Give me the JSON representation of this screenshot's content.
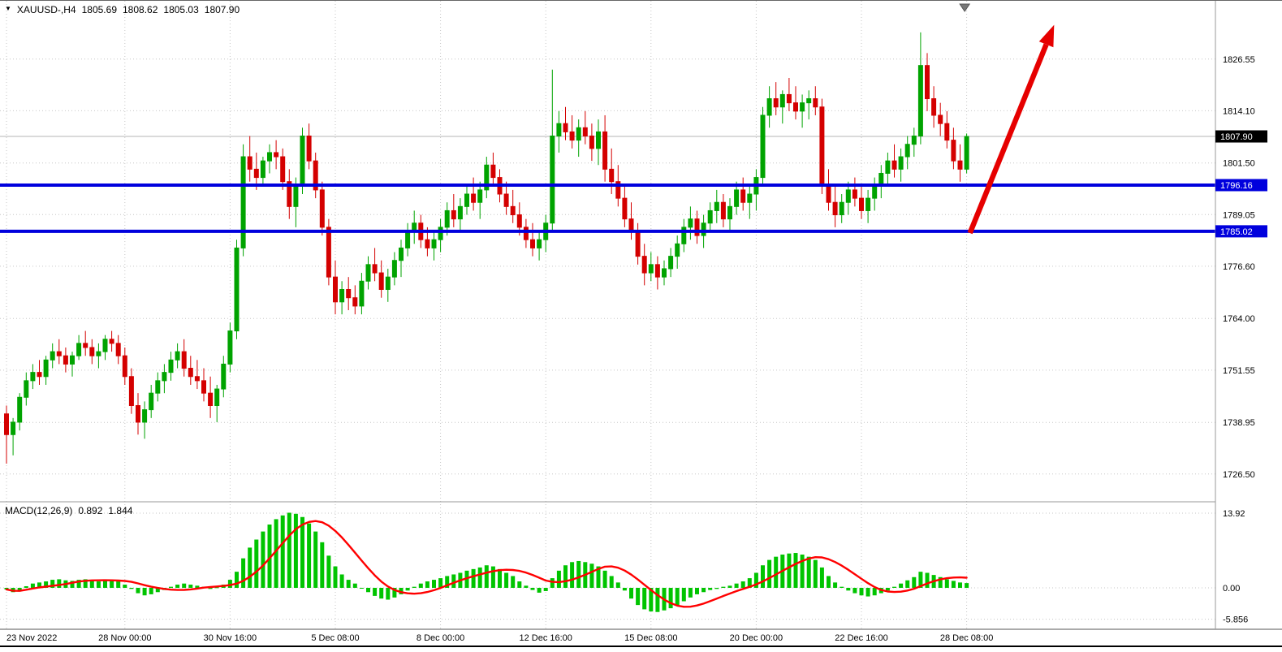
{
  "header": {
    "symbol": "XAUUSD-,H4",
    "open": "1805.69",
    "high": "1808.62",
    "low": "1805.03",
    "close": "1807.90"
  },
  "colors": {
    "up": "#00a300",
    "down": "#d40000",
    "hline": "#0000dd",
    "macd_bar": "#00c400",
    "signal": "#ff0000",
    "arrow": "#e60000",
    "grid": "#c6c6c6",
    "price_line": "#b4b4b4",
    "axis_text": "#000000",
    "badge_current_bg": "#000000",
    "badge_text": "#ffffff"
  },
  "chart_data": {
    "type": "candlestick",
    "symbol": "XAUUSD-",
    "timeframe": "H4",
    "price_range": [
      1719.8,
      1840.6
    ],
    "macd_range": [
      -7.72,
      16.04
    ],
    "grid": true,
    "price_tick_labels": [
      "1826.55",
      "1814.10",
      "1801.50",
      "1789.05",
      "1776.60",
      "1764.00",
      "1751.55",
      "1738.95",
      "1726.50"
    ],
    "current_price_label": "1807.90",
    "current_price": 1807.9,
    "hlines": [
      {
        "label": "1796.16",
        "price": 1796.16
      },
      {
        "label": "1785.02",
        "price": 1785.02
      }
    ],
    "time_labels": [
      {
        "text": "23 Nov 2022",
        "i": 0
      },
      {
        "text": "28 Nov 00:00",
        "i": 18
      },
      {
        "text": "30 Nov 16:00",
        "i": 34
      },
      {
        "text": "5 Dec 08:00",
        "i": 50
      },
      {
        "text": "8 Dec 00:00",
        "i": 66
      },
      {
        "text": "12 Dec 16:00",
        "i": 82
      },
      {
        "text": "15 Dec 08:00",
        "i": 98
      },
      {
        "text": "20 Dec 00:00",
        "i": 114
      },
      {
        "text": "22 Dec 16:00",
        "i": 130
      },
      {
        "text": "28 Dec 08:00",
        "i": 146
      }
    ],
    "candles": [
      [
        1741,
        1743,
        1729,
        1736
      ],
      [
        1736,
        1740,
        1731,
        1739
      ],
      [
        1739,
        1746,
        1737,
        1745
      ],
      [
        1745,
        1751,
        1743,
        1749
      ],
      [
        1749,
        1753,
        1747,
        1751
      ],
      [
        1751,
        1754,
        1748,
        1750
      ],
      [
        1750,
        1755,
        1748,
        1754
      ],
      [
        1754,
        1758,
        1752,
        1756
      ],
      [
        1756,
        1759,
        1753,
        1755
      ],
      [
        1755,
        1757,
        1751,
        1753
      ],
      [
        1753,
        1756,
        1750,
        1755
      ],
      [
        1755,
        1760,
        1754,
        1758
      ],
      [
        1758,
        1761,
        1755,
        1757
      ],
      [
        1757,
        1759,
        1753,
        1755
      ],
      [
        1755,
        1758,
        1752,
        1756
      ],
      [
        1756,
        1760,
        1754,
        1759
      ],
      [
        1759,
        1761,
        1756,
        1758
      ],
      [
        1758,
        1760,
        1753,
        1755
      ],
      [
        1755,
        1757,
        1748,
        1750
      ],
      [
        1750,
        1752,
        1741,
        1743
      ],
      [
        1743,
        1746,
        1736,
        1739
      ],
      [
        1739,
        1744,
        1735,
        1742
      ],
      [
        1742,
        1748,
        1740,
        1746
      ],
      [
        1746,
        1751,
        1744,
        1749
      ],
      [
        1749,
        1753,
        1746,
        1751
      ],
      [
        1751,
        1756,
        1749,
        1754
      ],
      [
        1754,
        1758,
        1752,
        1756
      ],
      [
        1756,
        1759,
        1750,
        1752
      ],
      [
        1752,
        1755,
        1748,
        1750
      ],
      [
        1750,
        1754,
        1747,
        1749
      ],
      [
        1749,
        1752,
        1744,
        1746
      ],
      [
        1746,
        1750,
        1740,
        1743
      ],
      [
        1743,
        1748,
        1739,
        1747
      ],
      [
        1747,
        1755,
        1745,
        1753
      ],
      [
        1753,
        1763,
        1751,
        1761
      ],
      [
        1761,
        1783,
        1759,
        1781
      ],
      [
        1781,
        1806,
        1779,
        1803
      ],
      [
        1803,
        1808,
        1797,
        1800
      ],
      [
        1800,
        1804,
        1795,
        1798
      ],
      [
        1798,
        1803,
        1796,
        1802
      ],
      [
        1802,
        1806,
        1799,
        1804
      ],
      [
        1804,
        1807,
        1800,
        1803
      ],
      [
        1803,
        1805,
        1795,
        1797
      ],
      [
        1797,
        1800,
        1788,
        1791
      ],
      [
        1791,
        1798,
        1786,
        1796
      ],
      [
        1796,
        1810,
        1794,
        1808
      ],
      [
        1808,
        1811,
        1800,
        1802
      ],
      [
        1802,
        1804,
        1793,
        1795
      ],
      [
        1795,
        1797,
        1784,
        1786
      ],
      [
        1786,
        1788,
        1772,
        1774
      ],
      [
        1774,
        1778,
        1765,
        1768
      ],
      [
        1768,
        1773,
        1765,
        1771
      ],
      [
        1771,
        1774,
        1766,
        1769
      ],
      [
        1769,
        1772,
        1765,
        1767
      ],
      [
        1767,
        1775,
        1765,
        1773
      ],
      [
        1773,
        1779,
        1771,
        1777
      ],
      [
        1777,
        1781,
        1773,
        1775
      ],
      [
        1775,
        1778,
        1769,
        1771
      ],
      [
        1771,
        1776,
        1768,
        1774
      ],
      [
        1774,
        1780,
        1772,
        1778
      ],
      [
        1778,
        1783,
        1774,
        1781
      ],
      [
        1781,
        1787,
        1779,
        1785
      ],
      [
        1785,
        1790,
        1782,
        1787
      ],
      [
        1787,
        1789,
        1781,
        1783
      ],
      [
        1783,
        1786,
        1779,
        1781
      ],
      [
        1781,
        1785,
        1778,
        1783
      ],
      [
        1783,
        1788,
        1780,
        1786
      ],
      [
        1786,
        1792,
        1784,
        1790
      ],
      [
        1790,
        1794,
        1786,
        1788
      ],
      [
        1788,
        1793,
        1785,
        1791
      ],
      [
        1791,
        1796,
        1789,
        1794
      ],
      [
        1794,
        1798,
        1790,
        1792
      ],
      [
        1792,
        1797,
        1788,
        1795
      ],
      [
        1795,
        1803,
        1793,
        1801
      ],
      [
        1801,
        1804,
        1796,
        1798
      ],
      [
        1798,
        1800,
        1792,
        1794
      ],
      [
        1794,
        1797,
        1789,
        1791
      ],
      [
        1791,
        1795,
        1787,
        1789
      ],
      [
        1789,
        1792,
        1784,
        1786
      ],
      [
        1786,
        1788,
        1781,
        1783
      ],
      [
        1783,
        1787,
        1779,
        1781
      ],
      [
        1781,
        1785,
        1778,
        1783
      ],
      [
        1783,
        1789,
        1780,
        1787
      ],
      [
        1787,
        1824,
        1785,
        1808
      ],
      [
        1808,
        1814,
        1804,
        1811
      ],
      [
        1811,
        1815,
        1807,
        1809
      ],
      [
        1809,
        1813,
        1805,
        1807
      ],
      [
        1807,
        1812,
        1803,
        1810
      ],
      [
        1810,
        1814,
        1806,
        1808
      ],
      [
        1808,
        1811,
        1802,
        1805
      ],
      [
        1805,
        1812,
        1801,
        1809
      ],
      [
        1809,
        1813,
        1797,
        1800
      ],
      [
        1800,
        1805,
        1794,
        1797
      ],
      [
        1797,
        1801,
        1791,
        1793
      ],
      [
        1793,
        1796,
        1786,
        1788
      ],
      [
        1788,
        1792,
        1783,
        1785
      ],
      [
        1785,
        1787,
        1777,
        1779
      ],
      [
        1779,
        1782,
        1772,
        1775
      ],
      [
        1775,
        1780,
        1773,
        1777
      ],
      [
        1777,
        1779,
        1771,
        1774
      ],
      [
        1774,
        1778,
        1772,
        1776
      ],
      [
        1776,
        1781,
        1774,
        1779
      ],
      [
        1779,
        1784,
        1776,
        1782
      ],
      [
        1782,
        1788,
        1780,
        1786
      ],
      [
        1786,
        1791,
        1783,
        1788
      ],
      [
        1788,
        1790,
        1782,
        1784
      ],
      [
        1784,
        1789,
        1781,
        1787
      ],
      [
        1787,
        1792,
        1785,
        1790
      ],
      [
        1790,
        1795,
        1787,
        1792
      ],
      [
        1792,
        1794,
        1786,
        1788
      ],
      [
        1788,
        1793,
        1785,
        1791
      ],
      [
        1791,
        1797,
        1789,
        1795
      ],
      [
        1795,
        1798,
        1790,
        1792
      ],
      [
        1792,
        1796,
        1788,
        1794
      ],
      [
        1794,
        1800,
        1790,
        1798
      ],
      [
        1798,
        1815,
        1796,
        1813
      ],
      [
        1813,
        1820,
        1810,
        1817
      ],
      [
        1817,
        1821,
        1813,
        1815
      ],
      [
        1815,
        1819,
        1811,
        1818
      ],
      [
        1818,
        1822,
        1814,
        1816
      ],
      [
        1816,
        1820,
        1812,
        1814
      ],
      [
        1814,
        1818,
        1810,
        1816
      ],
      [
        1816,
        1819,
        1812,
        1817
      ],
      [
        1817,
        1820,
        1813,
        1815
      ],
      [
        1815,
        1817,
        1794,
        1796
      ],
      [
        1796,
        1800,
        1790,
        1792
      ],
      [
        1792,
        1796,
        1786,
        1789
      ],
      [
        1789,
        1794,
        1787,
        1792
      ],
      [
        1792,
        1797,
        1789,
        1795
      ],
      [
        1795,
        1798,
        1791,
        1793
      ],
      [
        1793,
        1796,
        1788,
        1790
      ],
      [
        1790,
        1795,
        1787,
        1793
      ],
      [
        1793,
        1798,
        1790,
        1796
      ],
      [
        1796,
        1801,
        1793,
        1799
      ],
      [
        1799,
        1804,
        1796,
        1802
      ],
      [
        1802,
        1806,
        1798,
        1800
      ],
      [
        1800,
        1805,
        1797,
        1803
      ],
      [
        1803,
        1808,
        1800,
        1806
      ],
      [
        1806,
        1810,
        1803,
        1808
      ],
      [
        1808,
        1833,
        1806,
        1825
      ],
      [
        1825,
        1828,
        1814,
        1817
      ],
      [
        1817,
        1820,
        1810,
        1813
      ],
      [
        1813,
        1816,
        1808,
        1811
      ],
      [
        1811,
        1814,
        1805,
        1807
      ],
      [
        1807,
        1810,
        1800,
        1802
      ],
      [
        1802,
        1806,
        1797,
        1800
      ],
      [
        1800,
        1808.6,
        1799,
        1807.9
      ]
    ],
    "macd": {
      "label": "MACD(12,26,9)",
      "main_value": "0.892",
      "signal_value": "1.844",
      "tick_labels": [
        "13.92",
        "0.00",
        "-5.856"
      ],
      "ticks": [
        13.92,
        0.0,
        -5.856
      ],
      "signal_period": 9,
      "histogram": [
        -0.3,
        -0.8,
        -0.6,
        0.3,
        0.8,
        1.0,
        1.2,
        1.5,
        1.6,
        1.4,
        1.3,
        1.5,
        1.6,
        1.4,
        1.2,
        1.3,
        1.4,
        1.2,
        0.6,
        -0.2,
        -1.0,
        -1.4,
        -1.2,
        -0.8,
        -0.4,
        0.2,
        0.6,
        0.8,
        0.6,
        0.4,
        0.2,
        -0.2,
        0.1,
        0.6,
        1.5,
        3.0,
        5.5,
        7.5,
        9.0,
        10.5,
        11.8,
        12.8,
        13.5,
        14.0,
        13.8,
        13.2,
        12.0,
        10.5,
        8.5,
        6.0,
        4.0,
        2.5,
        1.5,
        0.8,
        0.0,
        -0.8,
        -1.5,
        -2.0,
        -2.2,
        -1.8,
        -1.2,
        -0.5,
        0.2,
        0.8,
        1.2,
        1.5,
        1.8,
        2.2,
        2.5,
        2.8,
        3.2,
        3.5,
        3.8,
        4.2,
        4.0,
        3.5,
        2.8,
        2.2,
        1.2,
        0.4,
        -0.4,
        -0.9,
        -0.6,
        1.8,
        3.2,
        4.2,
        4.8,
        5.0,
        4.8,
        4.5,
        4.0,
        3.2,
        2.2,
        1.0,
        -0.5,
        -2.0,
        -3.2,
        -4.0,
        -4.4,
        -4.5,
        -4.2,
        -3.8,
        -3.2,
        -2.5,
        -1.8,
        -1.2,
        -0.8,
        -0.4,
        -0.2,
        0.2,
        0.4,
        0.8,
        1.2,
        1.8,
        2.8,
        4.2,
        5.2,
        5.8,
        6.2,
        6.4,
        6.5,
        6.2,
        5.8,
        5.2,
        3.8,
        2.2,
        1.0,
        0.2,
        -0.5,
        -1.0,
        -1.4,
        -1.6,
        -1.4,
        -1.0,
        -0.5,
        0.2,
        0.8,
        1.4,
        2.0,
        3.0,
        2.8,
        2.4,
        2.0,
        1.6,
        1.3,
        1.0,
        0.892
      ]
    },
    "annotations": {
      "arrow": {
        "from_i": 146.5,
        "from_price": 1784.6,
        "to_i": 159.3,
        "to_price": 1834.8
      },
      "shift_marker_i": 145.7
    }
  }
}
